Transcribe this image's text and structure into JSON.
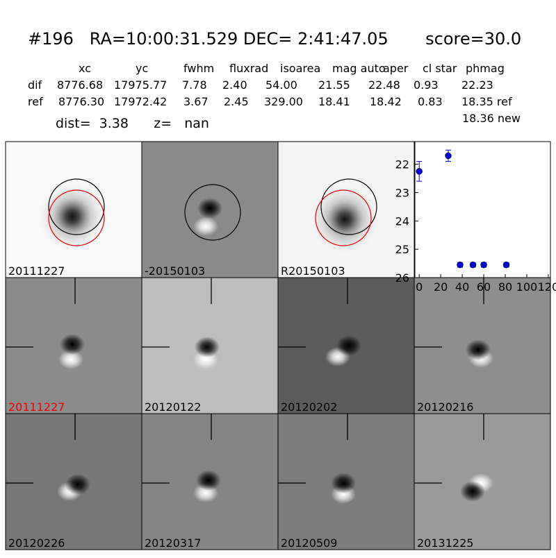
{
  "header": {
    "title": "#196   RA=10:00:31.529 DEC= 2:41:47.05       score=30.0",
    "columns": [
      "xc",
      "yc",
      "fwhm",
      "fluxrad",
      "isoarea",
      "mag auto",
      "aper",
      "cl star",
      "phmag"
    ],
    "rows": [
      [
        "dif",
        "8776.68",
        "17975.77",
        "7.78",
        "2.40",
        "54.00",
        "21.55",
        "22.48",
        "0.93",
        "22.23"
      ],
      [
        "ref",
        "8776.30",
        "17972.42",
        "3.67",
        "2.45",
        "329.00",
        "18.41",
        "18.42",
        "0.83",
        "18.35 ref"
      ]
    ],
    "phmag_new": "18.36 new",
    "dist_line": "dist=  3.38      z=   nan"
  },
  "stamps": [
    "20111227",
    "-20150103",
    "R20150103",
    "20111227",
    "20120122",
    "20120202",
    "20120216",
    "20120226",
    "20120317",
    "20120509",
    "20131225"
  ],
  "chart_data": {
    "type": "scatter",
    "series": [
      {
        "color": "#0000cc",
        "x": [
          0,
          27,
          38,
          50,
          60,
          81
        ],
        "values": [
          22.25,
          21.7,
          25.55,
          25.55,
          25.55,
          25.55
        ],
        "errors": [
          0.35,
          0.2,
          0.08,
          0.08,
          0.08,
          0.08
        ]
      }
    ],
    "xlim": [
      -4,
      122
    ],
    "ylim": [
      26,
      21.2
    ],
    "xticks": [
      0,
      20,
      40,
      60,
      80,
      100,
      120
    ],
    "yticks": [
      22,
      23,
      24,
      25,
      26
    ]
  }
}
